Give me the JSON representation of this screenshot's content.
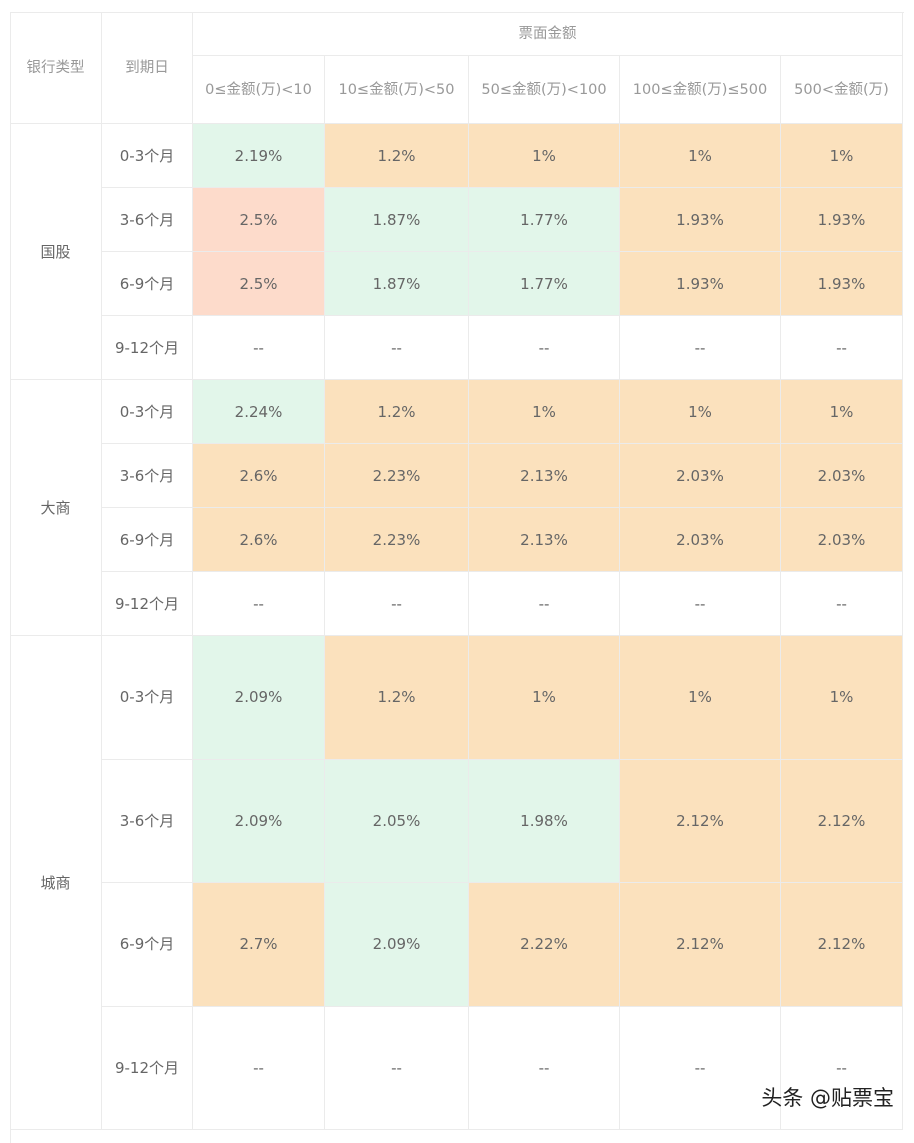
{
  "header": {
    "bank_type": "银行类型",
    "maturity": "到期日",
    "amount_group": "票面金额",
    "amount_columns": [
      "0≤金额(万)<10",
      "10≤金额(万)<50",
      "50≤金额(万)<100",
      "100≤金额(万)≤500",
      "500<金额(万)"
    ]
  },
  "groups": [
    {
      "name": "国股",
      "rows": [
        {
          "maturity": "0-3个月",
          "cells": [
            {
              "text": "2.19%",
              "color": "#e2f6ea"
            },
            {
              "text": "1.2%",
              "color": "#fbe1bd"
            },
            {
              "text": "1%",
              "color": "#fbe1bd"
            },
            {
              "text": "1%",
              "color": "#fbe1bd"
            },
            {
              "text": "1%",
              "color": "#fbe1bd"
            }
          ]
        },
        {
          "maturity": "3-6个月",
          "cells": [
            {
              "text": "2.5%",
              "color": "#fddbcb"
            },
            {
              "text": "1.87%",
              "color": "#e2f6ea"
            },
            {
              "text": "1.77%",
              "color": "#e2f6ea"
            },
            {
              "text": "1.93%",
              "color": "#fbe1bd"
            },
            {
              "text": "1.93%",
              "color": "#fbe1bd"
            }
          ]
        },
        {
          "maturity": "6-9个月",
          "cells": [
            {
              "text": "2.5%",
              "color": "#fddbcb"
            },
            {
              "text": "1.87%",
              "color": "#e2f6ea"
            },
            {
              "text": "1.77%",
              "color": "#e2f6ea"
            },
            {
              "text": "1.93%",
              "color": "#fbe1bd"
            },
            {
              "text": "1.93%",
              "color": "#fbe1bd"
            }
          ]
        },
        {
          "maturity": "9-12个月",
          "cells": [
            {
              "text": "--",
              "color": "#ffffff"
            },
            {
              "text": "--",
              "color": "#ffffff"
            },
            {
              "text": "--",
              "color": "#ffffff"
            },
            {
              "text": "--",
              "color": "#ffffff"
            },
            {
              "text": "--",
              "color": "#ffffff"
            }
          ]
        }
      ]
    },
    {
      "name": "大商",
      "rows": [
        {
          "maturity": "0-3个月",
          "cells": [
            {
              "text": "2.24%",
              "color": "#e2f6ea"
            },
            {
              "text": "1.2%",
              "color": "#fbe1bd"
            },
            {
              "text": "1%",
              "color": "#fbe1bd"
            },
            {
              "text": "1%",
              "color": "#fbe1bd"
            },
            {
              "text": "1%",
              "color": "#fbe1bd"
            }
          ]
        },
        {
          "maturity": "3-6个月",
          "cells": [
            {
              "text": "2.6%",
              "color": "#fbe1bd"
            },
            {
              "text": "2.23%",
              "color": "#fbe1bd"
            },
            {
              "text": "2.13%",
              "color": "#fbe1bd"
            },
            {
              "text": "2.03%",
              "color": "#fbe1bd"
            },
            {
              "text": "2.03%",
              "color": "#fbe1bd"
            }
          ]
        },
        {
          "maturity": "6-9个月",
          "cells": [
            {
              "text": "2.6%",
              "color": "#fbe1bd"
            },
            {
              "text": "2.23%",
              "color": "#fbe1bd"
            },
            {
              "text": "2.13%",
              "color": "#fbe1bd"
            },
            {
              "text": "2.03%",
              "color": "#fbe1bd"
            },
            {
              "text": "2.03%",
              "color": "#fbe1bd"
            }
          ]
        },
        {
          "maturity": "9-12个月",
          "cells": [
            {
              "text": "--",
              "color": "#ffffff"
            },
            {
              "text": "--",
              "color": "#ffffff"
            },
            {
              "text": "--",
              "color": "#ffffff"
            },
            {
              "text": "--",
              "color": "#ffffff"
            },
            {
              "text": "--",
              "color": "#ffffff"
            }
          ]
        }
      ]
    },
    {
      "name": "城商",
      "rows": [
        {
          "maturity": "0-3个月",
          "cells": [
            {
              "text": "2.09%",
              "color": "#e2f6ea"
            },
            {
              "text": "1.2%",
              "color": "#fbe1bd"
            },
            {
              "text": "1%",
              "color": "#fbe1bd"
            },
            {
              "text": "1%",
              "color": "#fbe1bd"
            },
            {
              "text": "1%",
              "color": "#fbe1bd"
            }
          ]
        },
        {
          "maturity": "3-6个月",
          "cells": [
            {
              "text": "2.09%",
              "color": "#e2f6ea"
            },
            {
              "text": "2.05%",
              "color": "#e2f6ea"
            },
            {
              "text": "1.98%",
              "color": "#e2f6ea"
            },
            {
              "text": "2.12%",
              "color": "#fbe1bd"
            },
            {
              "text": "2.12%",
              "color": "#fbe1bd"
            }
          ]
        },
        {
          "maturity": "6-9个月",
          "cells": [
            {
              "text": "2.7%",
              "color": "#fbe1bd"
            },
            {
              "text": "2.09%",
              "color": "#e2f6ea"
            },
            {
              "text": "2.22%",
              "color": "#fbe1bd"
            },
            {
              "text": "2.12%",
              "color": "#fbe1bd"
            },
            {
              "text": "2.12%",
              "color": "#fbe1bd"
            }
          ]
        },
        {
          "maturity": "9-12个月",
          "cells": [
            {
              "text": "--",
              "color": "#ffffff"
            },
            {
              "text": "--",
              "color": "#ffffff"
            },
            {
              "text": "--",
              "color": "#ffffff"
            },
            {
              "text": "--",
              "color": "#ffffff"
            },
            {
              "text": "--",
              "color": "#ffffff"
            }
          ]
        }
      ]
    }
  ],
  "watermark": "头条 @贴票宝"
}
